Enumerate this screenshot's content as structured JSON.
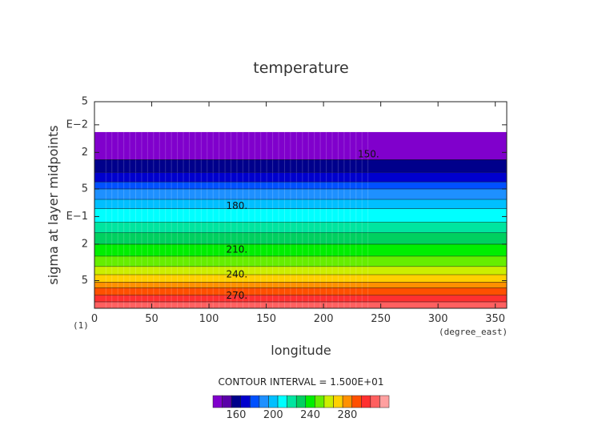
{
  "chart_data": {
    "type": "heatmap",
    "title": "temperature",
    "xlabel": "longitude",
    "ylabel": "sigma at layer midpoints",
    "x_unit": "(degree_east)",
    "y_corner_label": "(1)",
    "xlim": [
      0,
      360
    ],
    "x_ticks": [
      0,
      50,
      100,
      150,
      200,
      250,
      300,
      350
    ],
    "y_scale": "log",
    "y_tick_labels": [
      "5",
      "E−2",
      "2",
      "5",
      "E−1",
      "2",
      "5"
    ],
    "contour_interval_text": "CONTOUR INTERVAL = 1.500E+01",
    "contour_labels": [
      "150.",
      "180.",
      "210.",
      "240.",
      "270."
    ],
    "colorbar": {
      "tick_labels": [
        "160",
        "200",
        "240",
        "280"
      ],
      "colors": [
        "#8000cc",
        "#5a00a8",
        "#00008b",
        "#0000cd",
        "#0050ff",
        "#1e90ff",
        "#00bfff",
        "#00ffff",
        "#00e5a0",
        "#00d060",
        "#00ee00",
        "#66ee00",
        "#ccee00",
        "#ffd000",
        "#ff9000",
        "#ff5000",
        "#ff3030",
        "#ff6060",
        "#ffa0a0"
      ]
    },
    "bands": [
      {
        "color": "#8000cc",
        "y_sigma_top": 0.012,
        "y_sigma_bottom": 0.024
      },
      {
        "color": "#00008b",
        "y_sigma_top": 0.024,
        "y_sigma_bottom": 0.033
      },
      {
        "color": "#0000cd",
        "y_sigma_top": 0.033,
        "y_sigma_bottom": 0.042
      },
      {
        "color": "#0050ff",
        "y_sigma_top": 0.042,
        "y_sigma_bottom": 0.05
      },
      {
        "color": "#1e90ff",
        "y_sigma_top": 0.05,
        "y_sigma_bottom": 0.065
      },
      {
        "color": "#00bfff",
        "y_sigma_top": 0.065,
        "y_sigma_bottom": 0.082
      },
      {
        "color": "#00ffff",
        "y_sigma_top": 0.082,
        "y_sigma_bottom": 0.115
      },
      {
        "color": "#00e5a0",
        "y_sigma_top": 0.115,
        "y_sigma_bottom": 0.15
      },
      {
        "color": "#00d060",
        "y_sigma_top": 0.15,
        "y_sigma_bottom": 0.2
      },
      {
        "color": "#00ee00",
        "y_sigma_top": 0.2,
        "y_sigma_bottom": 0.27
      },
      {
        "color": "#66ee00",
        "y_sigma_top": 0.27,
        "y_sigma_bottom": 0.35
      },
      {
        "color": "#ccee00",
        "y_sigma_top": 0.35,
        "y_sigma_bottom": 0.43
      },
      {
        "color": "#ffd000",
        "y_sigma_top": 0.43,
        "y_sigma_bottom": 0.52
      },
      {
        "color": "#ff9000",
        "y_sigma_top": 0.52,
        "y_sigma_bottom": 0.6
      },
      {
        "color": "#ff5000",
        "y_sigma_top": 0.6,
        "y_sigma_bottom": 0.72
      },
      {
        "color": "#ff3030",
        "y_sigma_top": 0.72,
        "y_sigma_bottom": 0.85
      },
      {
        "color": "#ff6060",
        "y_sigma_top": 0.85,
        "y_sigma_bottom": 0.995
      }
    ]
  }
}
